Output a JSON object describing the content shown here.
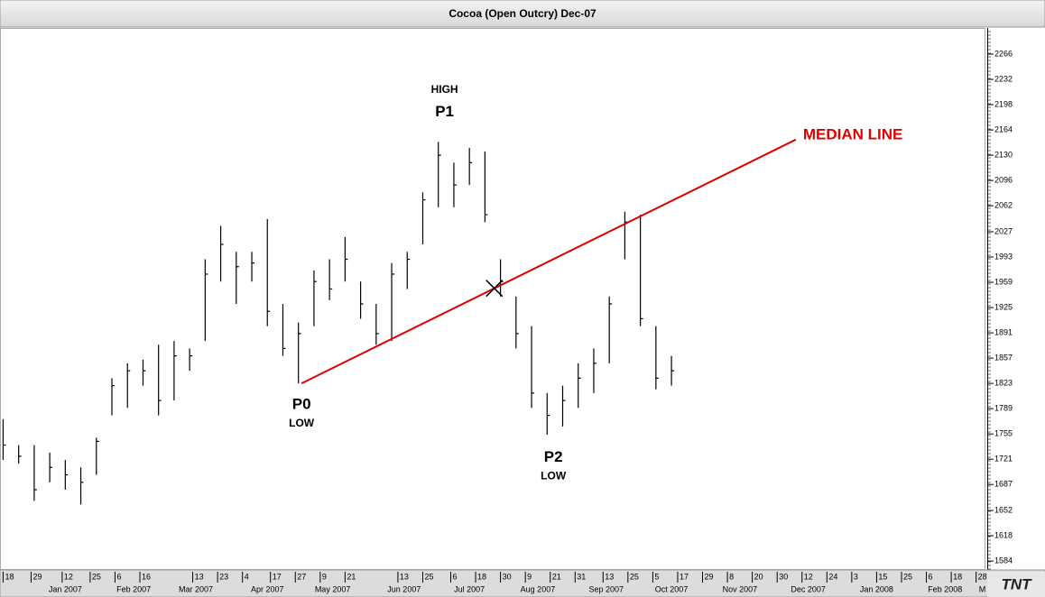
{
  "chart_data": {
    "type": "ohlc",
    "title": "Cocoa (Open Outcry) Dec-07",
    "x": [
      "2006-12-18",
      "2006-12-25",
      "2007-01-01",
      "2007-01-08",
      "2007-01-15",
      "2007-01-22",
      "2007-01-29",
      "2007-02-05",
      "2007-02-12",
      "2007-02-19",
      "2007-02-26",
      "2007-03-05",
      "2007-03-12",
      "2007-03-19",
      "2007-03-26",
      "2007-04-02",
      "2007-04-09",
      "2007-04-16",
      "2007-04-23",
      "2007-04-30",
      "2007-05-07",
      "2007-05-14",
      "2007-05-21",
      "2007-05-28",
      "2007-06-04",
      "2007-06-11",
      "2007-06-18",
      "2007-06-25",
      "2007-07-02",
      "2007-07-09",
      "2007-07-16",
      "2007-07-23",
      "2007-07-30",
      "2007-08-06",
      "2007-08-13",
      "2007-08-20",
      "2007-08-27",
      "2007-09-03",
      "2007-09-10",
      "2007-09-17",
      "2007-09-24",
      "2007-10-01",
      "2007-10-08",
      "2007-10-15"
    ],
    "high": [
      1775,
      1740,
      1740,
      1730,
      1720,
      1710,
      1750,
      1830,
      1850,
      1855,
      1875,
      1880,
      1870,
      1990,
      2035,
      2000,
      2000,
      2044,
      1930,
      1905,
      1975,
      1990,
      2020,
      1960,
      1930,
      1985,
      2000,
      2080,
      2148,
      2120,
      2140,
      2135,
      1990,
      1940,
      1900,
      1810,
      1820,
      1850,
      1870,
      1940,
      2054,
      2050,
      1900,
      1860
    ],
    "low": [
      1720,
      1715,
      1665,
      1690,
      1680,
      1660,
      1700,
      1780,
      1790,
      1820,
      1780,
      1800,
      1840,
      1880,
      1960,
      1930,
      1960,
      1900,
      1860,
      1823,
      1900,
      1935,
      1960,
      1910,
      1875,
      1880,
      1950,
      2010,
      2060,
      2060,
      2090,
      2040,
      1940,
      1870,
      1790,
      1754,
      1765,
      1790,
      1810,
      1850,
      1990,
      1900,
      1815,
      1820
    ],
    "close": [
      1740,
      1725,
      1680,
      1710,
      1700,
      1690,
      1745,
      1820,
      1840,
      1840,
      1800,
      1860,
      1860,
      1970,
      2010,
      1980,
      1985,
      1920,
      1870,
      1890,
      1960,
      1950,
      1990,
      1930,
      1890,
      1970,
      1990,
      2070,
      2130,
      2090,
      2120,
      2050,
      1960,
      1890,
      1810,
      1780,
      1800,
      1830,
      1850,
      1930,
      2040,
      1910,
      1830,
      1840
    ],
    "color": "#000000",
    "xlim": [
      "2006-12-15",
      "2008-03-04"
    ],
    "xticks": [
      {
        "value": "2006-12-18",
        "label": "18"
      },
      {
        "value": "2006-12-29",
        "label": "29"
      },
      {
        "value": "2007-01-12",
        "label": "12"
      },
      {
        "value": "2007-01-25",
        "label": "25"
      },
      {
        "value": "2007-02-06",
        "label": "6"
      },
      {
        "value": "2007-02-16",
        "label": "16"
      },
      {
        "value": "2007-03-13",
        "label": "13"
      },
      {
        "value": "2007-03-23",
        "label": "23"
      },
      {
        "value": "2007-04-04",
        "label": "4"
      },
      {
        "value": "2007-04-17",
        "label": "17"
      },
      {
        "value": "2007-04-27",
        "label": "27"
      },
      {
        "value": "2007-05-09",
        "label": "9"
      },
      {
        "value": "2007-05-21",
        "label": "21"
      },
      {
        "value": "2007-06-13",
        "label": "13"
      },
      {
        "value": "2007-06-25",
        "label": "25"
      },
      {
        "value": "2007-07-06",
        "label": "6"
      },
      {
        "value": "2007-07-18",
        "label": "18"
      },
      {
        "value": "2007-07-30",
        "label": "30"
      },
      {
        "value": "2007-08-09",
        "label": "9"
      },
      {
        "value": "2007-08-21",
        "label": "21"
      },
      {
        "value": "2007-08-31",
        "label": "31"
      },
      {
        "value": "2007-09-13",
        "label": "13"
      },
      {
        "value": "2007-09-25",
        "label": "25"
      },
      {
        "value": "2007-10-05",
        "label": "5"
      },
      {
        "value": "2007-10-17",
        "label": "17"
      },
      {
        "value": "2007-10-29",
        "label": "29"
      },
      {
        "value": "2007-11-08",
        "label": "8"
      },
      {
        "value": "2007-11-20",
        "label": "20"
      },
      {
        "value": "2007-11-30",
        "label": "30"
      },
      {
        "value": "2007-12-12",
        "label": "12"
      },
      {
        "value": "2007-12-24",
        "label": "24"
      },
      {
        "value": "2008-01-03",
        "label": "3"
      },
      {
        "value": "2008-01-15",
        "label": "15"
      },
      {
        "value": "2008-01-25",
        "label": "25"
      },
      {
        "value": "2008-02-06",
        "label": "6"
      },
      {
        "value": "2008-02-18",
        "label": "18"
      },
      {
        "value": "2008-02-28",
        "label": "28"
      }
    ],
    "month_labels": [
      {
        "value": "2007-01-15",
        "label": "Jan 2007"
      },
      {
        "value": "2007-02-14",
        "label": "Feb 2007"
      },
      {
        "value": "2007-03-14",
        "label": "Mar 2007"
      },
      {
        "value": "2007-04-16",
        "label": "Apr 2007"
      },
      {
        "value": "2007-05-15",
        "label": "May 2007"
      },
      {
        "value": "2007-06-15",
        "label": "Jun 2007"
      },
      {
        "value": "2007-07-16",
        "label": "Jul 2007"
      },
      {
        "value": "2007-08-15",
        "label": "Aug 2007"
      },
      {
        "value": "2007-09-14",
        "label": "Sep 2007"
      },
      {
        "value": "2007-10-15",
        "label": "Oct 2007"
      },
      {
        "value": "2007-11-14",
        "label": "Nov 2007"
      },
      {
        "value": "2007-12-14",
        "label": "Dec 2007"
      },
      {
        "value": "2008-01-15",
        "label": "Jan 2008"
      },
      {
        "value": "2008-02-14",
        "label": "Feb 2008"
      },
      {
        "value": "2008-03-03",
        "label": "M"
      }
    ],
    "ylim": [
      1572,
      2300
    ],
    "yticks": [
      2266,
      2232,
      2198,
      2164,
      2130,
      2096,
      2062,
      2027,
      1993,
      1959,
      1925,
      1891,
      1857,
      1823,
      1789,
      1755,
      1721,
      1687,
      1652,
      1618,
      1584
    ],
    "median_line": {
      "label": "MEDIAN LINE",
      "color": "#e00000",
      "x": [
        "2007-05-01",
        "2007-12-10"
      ],
      "y": [
        1823,
        2151
      ]
    },
    "annotations": [
      {
        "text": "HIGH",
        "x": "2007-07-04",
        "y": 2218
      },
      {
        "text": "P1",
        "x": "2007-07-04",
        "y": 2188
      },
      {
        "text": "P0",
        "x": "2007-05-01",
        "y": 1794
      },
      {
        "text": "LOW",
        "x": "2007-05-01",
        "y": 1769
      },
      {
        "text": "P2",
        "x": "2007-08-22",
        "y": 1723
      },
      {
        "text": "LOW",
        "x": "2007-08-22",
        "y": 1698
      }
    ],
    "logo": "TNT"
  }
}
